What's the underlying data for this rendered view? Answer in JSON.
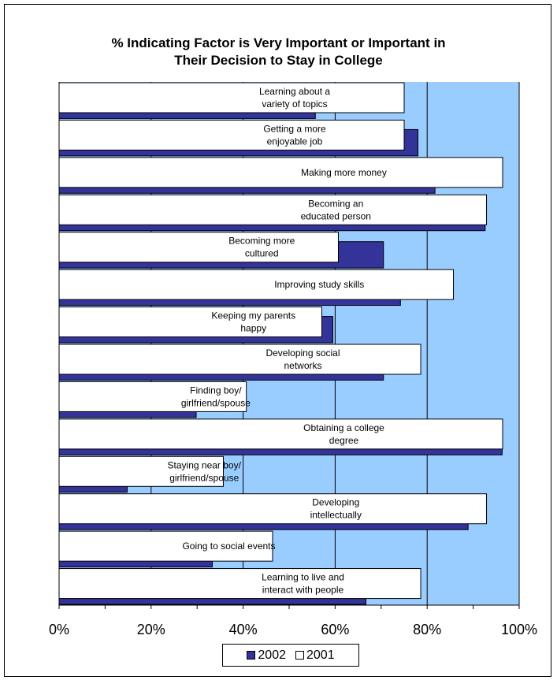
{
  "chart_data": {
    "type": "bar",
    "orientation": "horizontal",
    "title": "% Indicating Factor is Very Important or Important in Their Decision to Stay in College",
    "title_lines": [
      "% Indicating Factor is Very Important or Important in",
      "Their Decision to Stay in College"
    ],
    "categories": [
      "Learning about a variety of topics",
      "Getting a more enjoyable job",
      "Making more money",
      "Becoming an educated person",
      "Becoming more cultured",
      "Improving study skills",
      "Keeping my parents happy",
      "Developing social networks",
      "Finding boy/ girlfriend/spouse",
      "Obtaining a college degree",
      "Staying near boy/ girlfriend/spouse",
      "Developing intellectually",
      "Going to social events",
      "Learning to live and interact with people"
    ],
    "label_lines": [
      [
        "Learning about a",
        "variety of topics"
      ],
      [
        "Getting a more",
        "enjoyable job"
      ],
      [
        "Making more money"
      ],
      [
        "Becoming an",
        "educated person"
      ],
      [
        "Becoming more",
        "cultured"
      ],
      [
        "Improving study skills"
      ],
      [
        "Keeping my parents",
        "happy"
      ],
      [
        "Developing social",
        "networks"
      ],
      [
        "Finding boy/",
        "girlfriend/spouse"
      ],
      [
        "Obtaining a  college",
        "degree"
      ],
      [
        "Staying near boy/",
        "girlfriend/spouse"
      ],
      [
        "Developing",
        "intellectually"
      ],
      [
        "Going to social events"
      ],
      [
        "Learning to live and",
        "interact with people"
      ]
    ],
    "series": [
      {
        "name": "2002",
        "color": "#333399",
        "values": [
          55.7,
          78.0,
          81.7,
          92.6,
          70.5,
          74.2,
          59.5,
          70.5,
          29.8,
          96.3,
          14.8,
          88.9,
          33.3,
          66.7
        ]
      },
      {
        "name": "2001",
        "color": "#ffffff",
        "values": [
          75.0,
          75.0,
          96.4,
          92.9,
          60.7,
          85.7,
          57.1,
          78.6,
          40.7,
          96.4,
          35.7,
          92.9,
          46.4,
          78.6
        ]
      }
    ],
    "x_ticks": [
      "0%",
      "20%",
      "40%",
      "60%",
      "80%",
      "100%"
    ],
    "xlim": [
      0,
      100
    ],
    "grid": true,
    "plot_background": "#99ccff",
    "legend_position": "bottom-center"
  }
}
